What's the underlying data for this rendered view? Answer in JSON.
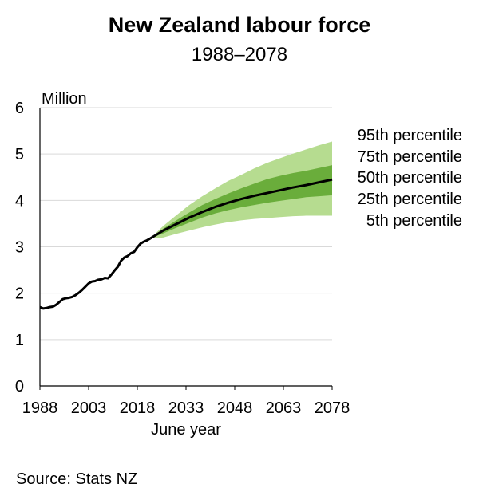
{
  "chart_data": {
    "type": "area",
    "title": "New Zealand labour force",
    "subtitle": "1988–2078",
    "xlabel": "June year",
    "ylabel": "Million",
    "source": "Source: Stats NZ",
    "xlim": [
      1988,
      2078
    ],
    "ylim": [
      0,
      6
    ],
    "x_ticks": [
      1988,
      2003,
      2018,
      2033,
      2048,
      2063,
      2078
    ],
    "y_ticks": [
      0,
      1,
      2,
      3,
      4,
      5,
      6
    ],
    "grid": "horizontal",
    "legend_placement": "right",
    "colors": {
      "band_outer": "#b6dc90",
      "band_inner": "#6aad3b",
      "median": "#000000",
      "grid": "#d9d9d9"
    },
    "historical": {
      "x": [
        1988,
        1989,
        1990,
        1991,
        1992,
        1993,
        1994,
        1995,
        1996,
        1997,
        1998,
        1999,
        2000,
        2001,
        2002,
        2003,
        2004,
        2005,
        2006,
        2007,
        2008,
        2009,
        2010,
        2011,
        2012,
        2013,
        2014,
        2015,
        2016,
        2017,
        2018,
        2019,
        2020,
        2021,
        2022
      ],
      "y": [
        1.7,
        1.67,
        1.68,
        1.7,
        1.71,
        1.75,
        1.81,
        1.87,
        1.89,
        1.9,
        1.92,
        1.96,
        2.01,
        2.07,
        2.14,
        2.21,
        2.25,
        2.26,
        2.29,
        2.3,
        2.33,
        2.32,
        2.4,
        2.49,
        2.57,
        2.7,
        2.77,
        2.8,
        2.86,
        2.89,
        2.99,
        3.07,
        3.11,
        3.14,
        3.18
      ]
    },
    "projection": {
      "x": [
        2022,
        2026,
        2030,
        2034,
        2038,
        2042,
        2046,
        2050,
        2054,
        2058,
        2062,
        2066,
        2070,
        2074,
        2078
      ],
      "series": [
        {
          "name": "95th percentile",
          "values": [
            3.18,
            3.45,
            3.68,
            3.9,
            4.09,
            4.26,
            4.42,
            4.55,
            4.69,
            4.81,
            4.91,
            5.01,
            5.1,
            5.19,
            5.27
          ]
        },
        {
          "name": "75th percentile",
          "values": [
            3.18,
            3.39,
            3.57,
            3.74,
            3.9,
            4.03,
            4.15,
            4.26,
            4.36,
            4.46,
            4.53,
            4.59,
            4.64,
            4.7,
            4.76
          ]
        },
        {
          "name": "50th percentile",
          "values": [
            3.18,
            3.35,
            3.49,
            3.63,
            3.75,
            3.86,
            3.95,
            4.03,
            4.1,
            4.16,
            4.22,
            4.28,
            4.33,
            4.39,
            4.45
          ]
        },
        {
          "name": "25th percentile",
          "values": [
            3.18,
            3.29,
            3.41,
            3.52,
            3.63,
            3.72,
            3.79,
            3.85,
            3.9,
            3.95,
            3.99,
            4.03,
            4.07,
            4.09,
            4.11
          ]
        },
        {
          "name": "5th percentile",
          "values": [
            3.18,
            3.2,
            3.28,
            3.35,
            3.42,
            3.48,
            3.53,
            3.57,
            3.6,
            3.62,
            3.64,
            3.66,
            3.67,
            3.67,
            3.67
          ]
        }
      ]
    }
  }
}
